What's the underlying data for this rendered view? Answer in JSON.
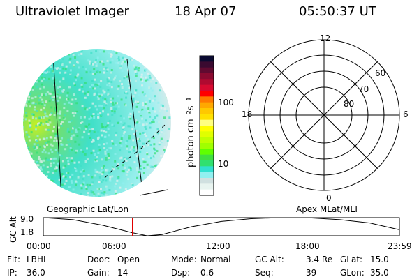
{
  "header": {
    "instrument": "Ultraviolet Imager",
    "date": "18 Apr 07",
    "time": "05:50:37 UT"
  },
  "colorbar": {
    "label": "photon cm⁻²s⁻¹",
    "ticks": [
      {
        "label": "100",
        "value": 100
      },
      {
        "label": "10",
        "value": 10
      }
    ],
    "colors": [
      "#0a0a30",
      "#3a0a30",
      "#600a30",
      "#8a0a30",
      "#b00a30",
      "#d80a30",
      "#ff0000",
      "#ff7a00",
      "#ffa800",
      "#ffc800",
      "#ffe000",
      "#ffff80",
      "#ffff00",
      "#e0ff00",
      "#c0ff00",
      "#a0ff00",
      "#60ff00",
      "#40e040",
      "#30e070",
      "#30e0d0",
      "#90f0f0",
      "#d0e0e0",
      "#e8f4f0",
      "#ffffff"
    ]
  },
  "polar": {
    "labels": {
      "top": "12",
      "bottom": "0",
      "left": "18",
      "right": "6"
    },
    "rings": [
      {
        "label": "60"
      },
      {
        "label": "70"
      },
      {
        "label": "80"
      }
    ]
  },
  "labels": {
    "geo": "Geographic Lat/Lon",
    "apex": "Apex MLat/MLT"
  },
  "chart_data": {
    "type": "line",
    "title": "GC Alt",
    "ylabel": "GC Alt",
    "ylim": [
      1.8,
      9.0
    ],
    "yticks": [
      "9.0",
      "1.8"
    ],
    "xticks": [
      "00:00",
      "06:00",
      "12:00",
      "18:00",
      "23:59"
    ],
    "x": [
      0,
      2,
      4,
      6,
      7,
      8,
      10,
      12,
      14,
      16,
      18,
      20,
      22,
      24
    ],
    "y": [
      9.0,
      8.2,
      6.0,
      3.0,
      1.8,
      2.3,
      5.4,
      7.5,
      8.6,
      9.0,
      8.9,
      8.2,
      6.9,
      4.2
    ],
    "current_time_hours": 6.0
  },
  "footer": [
    {
      "label": "Flt:",
      "value": "LBHL"
    },
    {
      "label": "Door:",
      "value": "Open"
    },
    {
      "label": "Mode:",
      "value": "Normal"
    },
    {
      "label": "GC Alt:",
      "value": "3.4 Re"
    },
    {
      "label": "GLat:",
      "value": "15.0"
    },
    {
      "label": "IP:",
      "value": "36.0"
    },
    {
      "label": "Gain:",
      "value": "14"
    },
    {
      "label": "Dsp:",
      "value": "0.6"
    },
    {
      "label": "Seq:",
      "value": "39"
    },
    {
      "label": "GLon:",
      "value": "35.0"
    }
  ]
}
